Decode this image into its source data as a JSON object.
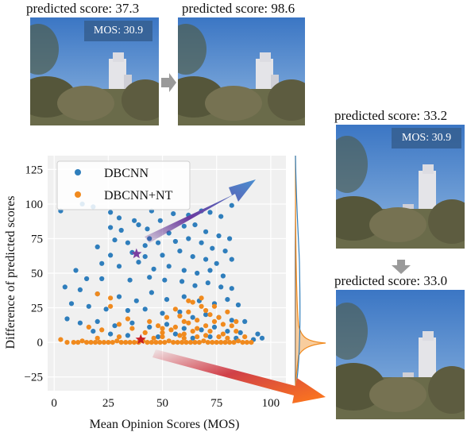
{
  "captions": {
    "top_left": "predicted score: 37.3",
    "top_right": "predicted score: 98.6",
    "right_top": "predicted score: 33.2",
    "right_bottom": "predicted score: 33.0"
  },
  "badges": {
    "top_left": "MOS: 30.9",
    "right_top": "MOS: 30.9"
  },
  "icons": {
    "right_arrow": "gray-right-arrow-icon",
    "down_arrow": "gray-down-arrow-icon",
    "up_arrow": "purple-blue-gradient-arrow-icon",
    "down_right_arrow": "red-orange-gradient-arrow-icon"
  },
  "chart_data": {
    "type": "scatter",
    "xlabel": "Mean Opinion Scores (MOS)",
    "ylabel": "Difference of predicted scores",
    "xlim": [
      -3,
      107
    ],
    "ylim": [
      -35,
      135
    ],
    "xticks": [
      "0",
      "25",
      "50",
      "75",
      "100"
    ],
    "yticks": [
      "−25",
      "0",
      "25",
      "50",
      "75",
      "100",
      "125"
    ],
    "grid": true,
    "legend_position": "top-left",
    "series": [
      {
        "name": "DBCNN",
        "color": "#2f7ebc",
        "points": [
          [
            3,
            95
          ],
          [
            13,
            100
          ],
          [
            18,
            98
          ],
          [
            26,
            94
          ],
          [
            30,
            90
          ],
          [
            37,
            88
          ],
          [
            45,
            95
          ],
          [
            43,
            82
          ],
          [
            49,
            88
          ],
          [
            55,
            93
          ],
          [
            62,
            92
          ],
          [
            68,
            95
          ],
          [
            72,
            94
          ],
          [
            77,
            91
          ],
          [
            82,
            99
          ],
          [
            26,
            83
          ],
          [
            31,
            81
          ],
          [
            39,
            85
          ],
          [
            44,
            75
          ],
          [
            53,
            79
          ],
          [
            60,
            84
          ],
          [
            65,
            85
          ],
          [
            70,
            80
          ],
          [
            76,
            77
          ],
          [
            81,
            75
          ],
          [
            28,
            74
          ],
          [
            34,
            72
          ],
          [
            42,
            70
          ],
          [
            48,
            72
          ],
          [
            56,
            73
          ],
          [
            62,
            75
          ],
          [
            68,
            72
          ],
          [
            73,
            68
          ],
          [
            79,
            66
          ],
          [
            20,
            69
          ],
          [
            26,
            63
          ],
          [
            36,
            65
          ],
          [
            42,
            62
          ],
          [
            50,
            63
          ],
          [
            58,
            66
          ],
          [
            64,
            62
          ],
          [
            70,
            60
          ],
          [
            75,
            57
          ],
          [
            82,
            60
          ],
          [
            22,
            57
          ],
          [
            30,
            55
          ],
          [
            39,
            58
          ],
          [
            46,
            53
          ],
          [
            53,
            55
          ],
          [
            60,
            52
          ],
          [
            66,
            50
          ],
          [
            72,
            52
          ],
          [
            78,
            48
          ],
          [
            10,
            52
          ],
          [
            15,
            46
          ],
          [
            22,
            46
          ],
          [
            35,
            45
          ],
          [
            44,
            47
          ],
          [
            51,
            45
          ],
          [
            59,
            44
          ],
          [
            65,
            41
          ],
          [
            71,
            43
          ],
          [
            77,
            40
          ],
          [
            82,
            39
          ],
          [
            5,
            40
          ],
          [
            12,
            38
          ],
          [
            20,
            35
          ],
          [
            30,
            33
          ],
          [
            38,
            30
          ],
          [
            45,
            36
          ],
          [
            52,
            31
          ],
          [
            60,
            33
          ],
          [
            67,
            30
          ],
          [
            74,
            28
          ],
          [
            80,
            31
          ],
          [
            85,
            27
          ],
          [
            8,
            28
          ],
          [
            16,
            26
          ],
          [
            24,
            24
          ],
          [
            34,
            23
          ],
          [
            42,
            24
          ],
          [
            50,
            21
          ],
          [
            58,
            22
          ],
          [
            64,
            18
          ],
          [
            70,
            20
          ],
          [
            76,
            18
          ],
          [
            82,
            16
          ],
          [
            88,
            15
          ],
          [
            6,
            17
          ],
          [
            12,
            14
          ],
          [
            20,
            15
          ],
          [
            28,
            12
          ],
          [
            36,
            14
          ],
          [
            44,
            11
          ],
          [
            52,
            13
          ],
          [
            60,
            10
          ],
          [
            68,
            9
          ],
          [
            74,
            11
          ],
          [
            80,
            8
          ],
          [
            86,
            7
          ],
          [
            94,
            6
          ],
          [
            96,
            3
          ],
          [
            18,
            8
          ],
          [
            26,
            6
          ],
          [
            34,
            5
          ],
          [
            48,
            4
          ],
          [
            56,
            6
          ],
          [
            64,
            3
          ],
          [
            72,
            4
          ],
          [
            84,
            3
          ],
          [
            92,
            2
          ]
        ]
      },
      {
        "name": "DBCNN+NT",
        "color": "#f08a1e",
        "points": [
          [
            3,
            2
          ],
          [
            6,
            0
          ],
          [
            9,
            0
          ],
          [
            11,
            0
          ],
          [
            13,
            1
          ],
          [
            15,
            0
          ],
          [
            17,
            0
          ],
          [
            19,
            0
          ],
          [
            21,
            0
          ],
          [
            23,
            0
          ],
          [
            25,
            0
          ],
          [
            27,
            0
          ],
          [
            29,
            1
          ],
          [
            31,
            0
          ],
          [
            33,
            0
          ],
          [
            35,
            0
          ],
          [
            37,
            0
          ],
          [
            39,
            0
          ],
          [
            41,
            1
          ],
          [
            43,
            0
          ],
          [
            45,
            0
          ],
          [
            47,
            0
          ],
          [
            49,
            0
          ],
          [
            51,
            0
          ],
          [
            53,
            1
          ],
          [
            55,
            0
          ],
          [
            57,
            0
          ],
          [
            59,
            0
          ],
          [
            61,
            0
          ],
          [
            63,
            0
          ],
          [
            65,
            0
          ],
          [
            67,
            0
          ],
          [
            69,
            1
          ],
          [
            71,
            0
          ],
          [
            73,
            0
          ],
          [
            75,
            0
          ],
          [
            77,
            0
          ],
          [
            79,
            0
          ],
          [
            81,
            0
          ],
          [
            83,
            0
          ],
          [
            85,
            1
          ],
          [
            87,
            0
          ],
          [
            89,
            0
          ],
          [
            91,
            0
          ],
          [
            20,
            3
          ],
          [
            30,
            4
          ],
          [
            40,
            2
          ],
          [
            50,
            4
          ],
          [
            60,
            3
          ],
          [
            70,
            5
          ],
          [
            80,
            3
          ],
          [
            88,
            4
          ],
          [
            46,
            3
          ],
          [
            58,
            5
          ],
          [
            66,
            4
          ],
          [
            76,
            4
          ],
          [
            16,
            11
          ],
          [
            22,
            9
          ],
          [
            30,
            13
          ],
          [
            36,
            10
          ],
          [
            48,
            12
          ],
          [
            54,
            9
          ],
          [
            62,
            14
          ],
          [
            70,
            12
          ],
          [
            78,
            13
          ],
          [
            84,
            8
          ],
          [
            42,
            7
          ],
          [
            50,
            7
          ],
          [
            64,
            8
          ],
          [
            72,
            8
          ],
          [
            52,
            18
          ],
          [
            58,
            19
          ],
          [
            62,
            22
          ],
          [
            66,
            16
          ],
          [
            72,
            20
          ],
          [
            76,
            18
          ],
          [
            80,
            22
          ],
          [
            68,
            26
          ],
          [
            74,
            26
          ],
          [
            26,
            26
          ],
          [
            56,
            24
          ],
          [
            70,
            23
          ],
          [
            20,
            35
          ],
          [
            26,
            32
          ],
          [
            64,
            29
          ],
          [
            60,
            15
          ],
          [
            56,
            11
          ],
          [
            74,
            15
          ],
          [
            44,
            15
          ],
          [
            34,
            17
          ],
          [
            50,
            10
          ],
          [
            66,
            10
          ],
          [
            82,
            12
          ],
          [
            60,
            6
          ],
          [
            78,
            6
          ],
          [
            84,
            15
          ],
          [
            62,
            30
          ],
          [
            68,
            32
          ]
        ]
      }
    ],
    "markers": [
      {
        "series": "DBCNN",
        "x": 38,
        "y": 64,
        "color": "#7b3fa0",
        "shape": "star"
      },
      {
        "series": "DBCNN+NT",
        "x": 40,
        "y": 2,
        "color": "#c91d22",
        "shape": "star"
      }
    ]
  }
}
